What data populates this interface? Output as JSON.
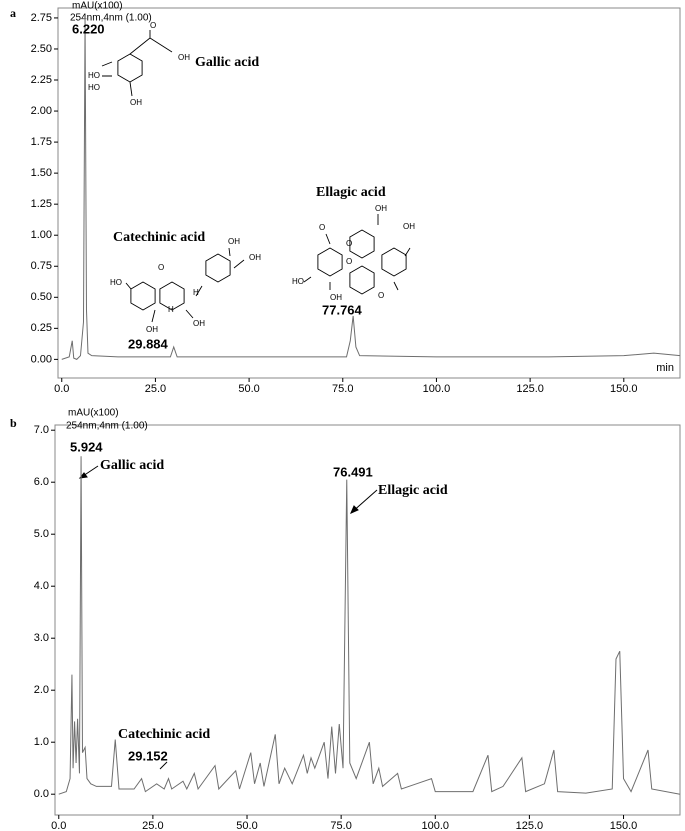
{
  "chart_data": [
    {
      "panel": "a",
      "type": "line",
      "y_unit": "mAU(x100)",
      "channel": "254nm,4nm (1.00)",
      "x_unit": "min",
      "xlim": [
        -1,
        165
      ],
      "ylim": [
        -0.15,
        2.83
      ],
      "xticks": [
        {
          "value": 0,
          "label": "0.0"
        },
        {
          "value": 25,
          "label": "25.0"
        },
        {
          "value": 50,
          "label": "50.0"
        },
        {
          "value": 75,
          "label": "75.0"
        },
        {
          "value": 100,
          "label": "100.0"
        },
        {
          "value": 125,
          "label": "125.0"
        },
        {
          "value": 150,
          "label": "150.0"
        }
      ],
      "yticks": [
        {
          "value": 0,
          "label": "0.00"
        },
        {
          "value": 0.25,
          "label": "0.25"
        },
        {
          "value": 0.5,
          "label": "0.50"
        },
        {
          "value": 0.75,
          "label": "0.75"
        },
        {
          "value": 1,
          "label": "1.00"
        },
        {
          "value": 1.25,
          "label": "1.25"
        },
        {
          "value": 1.5,
          "label": "1.50"
        },
        {
          "value": 1.75,
          "label": "1.75"
        },
        {
          "value": 2,
          "label": "2.00"
        },
        {
          "value": 2.25,
          "label": "2.25"
        },
        {
          "value": 2.5,
          "label": "2.50"
        },
        {
          "value": 2.75,
          "label": "2.75"
        }
      ],
      "series": [
        {
          "color": "#6e6e6e",
          "x": [
            0,
            2,
            2.8,
            3.2,
            4,
            5,
            5.8,
            6.22,
            6.6,
            7,
            8,
            15,
            29,
            29.884,
            30.8,
            50,
            76,
            77,
            77.764,
            78.5,
            79.5,
            100,
            130,
            150,
            158,
            165
          ],
          "values": [
            0,
            0.02,
            0.15,
            0.01,
            0,
            0.03,
            0.3,
            2.75,
            0.4,
            0.05,
            0.03,
            0.02,
            0.02,
            0.1,
            0.02,
            0.02,
            0.02,
            0.15,
            0.35,
            0.1,
            0.03,
            0.02,
            0.02,
            0.03,
            0.05,
            0.03
          ]
        }
      ],
      "peak_labels": [
        "6.220",
        "29.884",
        "77.764"
      ],
      "compound_labels": [
        "Gallic acid",
        "Catechinic acid",
        "Ellagic acid"
      ],
      "structures": [
        [
          "O",
          "OH",
          "HO",
          "HO",
          "OH"
        ],
        [
          "OH",
          "OH",
          "HO",
          "O",
          "H",
          "H",
          "OH",
          "OH"
        ],
        [
          "OH",
          "O",
          "O",
          "OH",
          "HO",
          "O",
          "O",
          "OH"
        ]
      ]
    },
    {
      "panel": "b",
      "type": "line",
      "y_unit": "mAU(x100)",
      "channel": "254nm,4nm (1.00)",
      "xlim": [
        -1,
        165
      ],
      "ylim": [
        -0.4,
        7.1
      ],
      "xticks": [
        {
          "value": 0,
          "label": "0.0"
        },
        {
          "value": 25,
          "label": "25.0"
        },
        {
          "value": 50,
          "label": "50.0"
        },
        {
          "value": 75,
          "label": "75.0"
        },
        {
          "value": 100,
          "label": "100.0"
        },
        {
          "value": 125,
          "label": "125.0"
        },
        {
          "value": 150,
          "label": "150.0"
        }
      ],
      "yticks": [
        {
          "value": 0,
          "label": "0.0"
        },
        {
          "value": 1,
          "label": "1.0"
        },
        {
          "value": 2,
          "label": "2.0"
        },
        {
          "value": 3,
          "label": "3.0"
        },
        {
          "value": 4,
          "label": "4.0"
        },
        {
          "value": 5,
          "label": "5.0"
        },
        {
          "value": 6,
          "label": "6.0"
        },
        {
          "value": 7,
          "label": "7.0"
        }
      ],
      "series": [
        {
          "color": "#6e6e6e",
          "x": [
            0,
            2,
            3,
            3.5,
            3.8,
            4.2,
            4.6,
            5,
            5.5,
            5.924,
            6.3,
            7,
            7.5,
            8.5,
            10,
            14,
            15,
            16,
            20,
            22,
            23,
            26,
            28,
            29.152,
            30,
            33,
            34,
            36,
            37,
            41.5,
            42.5,
            47,
            48,
            51,
            52,
            53.5,
            54.5,
            57.5,
            58.5,
            60,
            62,
            65,
            66,
            67,
            68,
            70.5,
            71.5,
            72.5,
            73.5,
            74.5,
            75.5,
            76.491,
            77.3,
            79,
            82.5,
            83.5,
            85,
            86,
            90,
            91,
            95,
            99,
            100,
            110,
            114,
            115,
            118,
            123,
            124,
            129,
            131.5,
            132.5,
            140,
            147,
            148,
            149,
            150,
            152,
            156.5,
            157.5,
            165
          ],
          "values": [
            0,
            0.05,
            0.3,
            2.3,
            0.5,
            1.4,
            0.6,
            1.45,
            0.4,
            6.5,
            0.8,
            0.9,
            0.3,
            0.2,
            0.15,
            0.15,
            1.05,
            0.1,
            0.1,
            0.3,
            0.05,
            0.2,
            0.1,
            0.3,
            0.1,
            0.25,
            0.1,
            0.4,
            0.1,
            0.55,
            0.1,
            0.45,
            0.1,
            0.8,
            0.2,
            0.6,
            0.15,
            1.15,
            0.2,
            0.5,
            0.2,
            0.75,
            0.4,
            0.7,
            0.5,
            1.0,
            0.3,
            1.3,
            0.4,
            1.35,
            0.5,
            6.05,
            0.6,
            0.3,
            1.0,
            0.2,
            0.5,
            0.15,
            0.4,
            0.1,
            0.2,
            0.3,
            0.05,
            0.05,
            0.75,
            0.05,
            0.15,
            0.7,
            0.05,
            0.2,
            0.85,
            0.05,
            0.02,
            0.1,
            2.6,
            2.75,
            0.3,
            0.05,
            0.85,
            0.1,
            0
          ]
        }
      ],
      "peak_labels": [
        "5.924",
        "29.152",
        "76.491"
      ],
      "compound_labels": [
        "Gallic acid",
        "Catechinic acid",
        "Ellagic acid"
      ]
    }
  ]
}
